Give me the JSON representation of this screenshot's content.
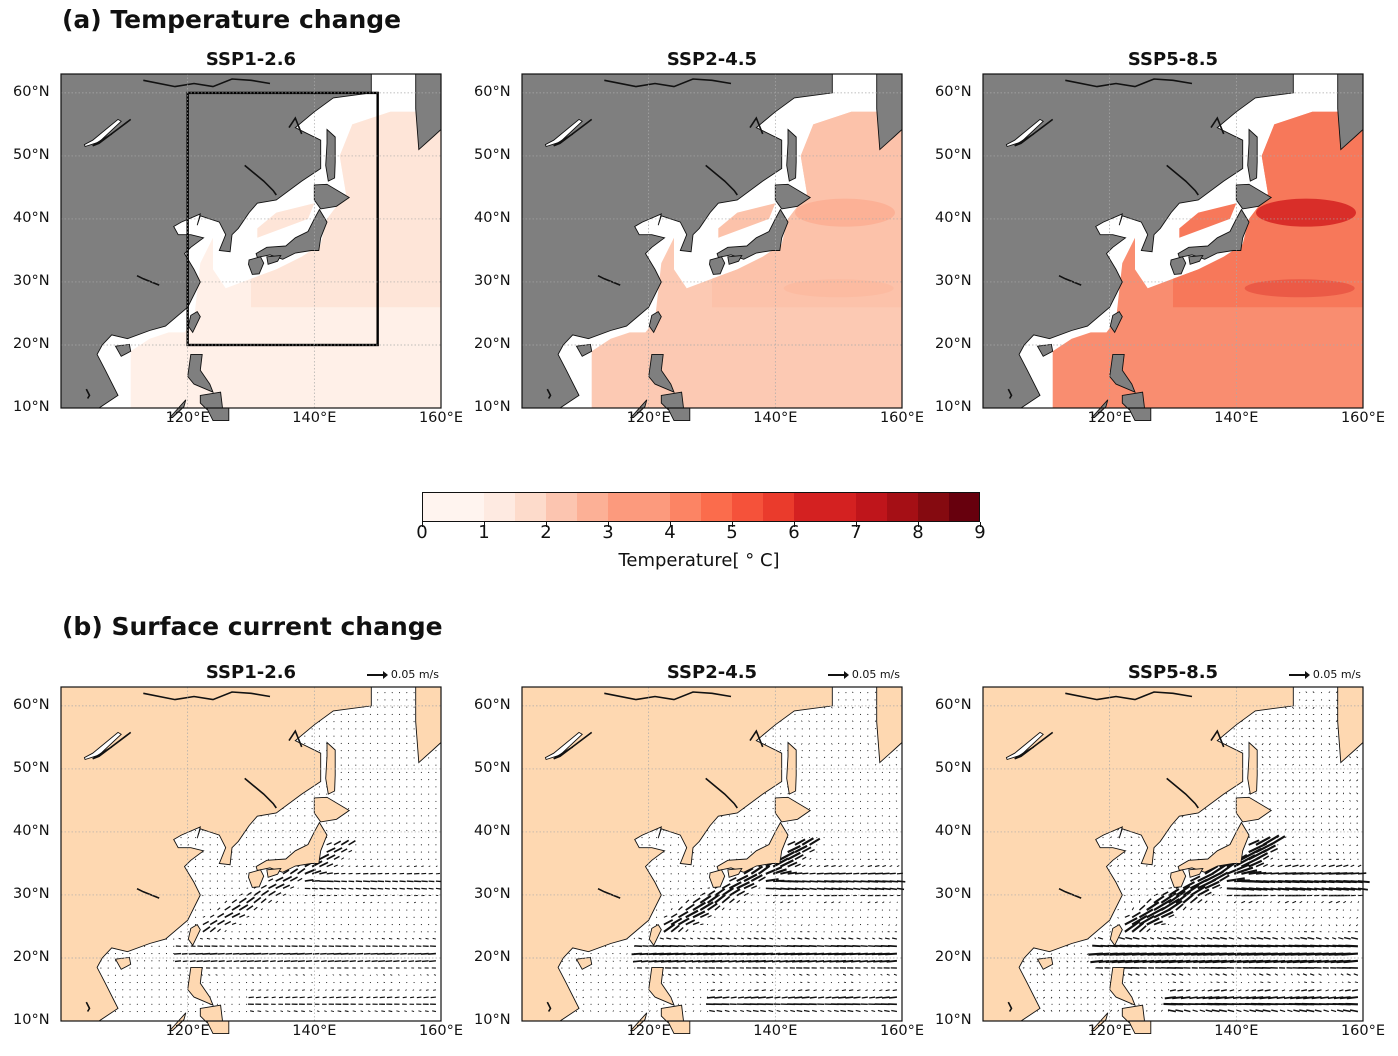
{
  "sections": [
    {
      "label": "(a) Temperature change"
    },
    {
      "label": "(b) Surface current change"
    }
  ],
  "scenarios": [
    "SSP1-2.6",
    "SSP2-4.5",
    "SSP5-8.5"
  ],
  "lat_ticks": [
    "60°N",
    "50°N",
    "40°N",
    "30°N",
    "20°N",
    "10°N"
  ],
  "lon_ticks": [
    "120°E",
    "140°E",
    "160°E"
  ],
  "map_extent": {
    "lon": [
      100,
      160
    ],
    "lat": [
      10,
      63
    ]
  },
  "study_box": {
    "lon": [
      120,
      150
    ],
    "lat": [
      20,
      60
    ]
  },
  "colors": {
    "land_a": "#7f7f7f",
    "land_b": "#fed8b1",
    "ocean_b": "#ffffff",
    "box": "#000000",
    "arrow": "#111111"
  },
  "colorbar": {
    "label": "Temperature[ ° C]",
    "ticks": [
      "0",
      "1",
      "2",
      "3",
      "4",
      "5",
      "6",
      "7",
      "8",
      "9"
    ],
    "colors": [
      "#fff4ef",
      "#feeae1",
      "#fddbcb",
      "#fcc5b0",
      "#fcb096",
      "#fc9a7d",
      "#fc8464",
      "#fb6c4c",
      "#f5523a",
      "#ea3b2c",
      "#d42121",
      "#bf151b",
      "#a50f15",
      "#850a10",
      "#67000d"
    ]
  },
  "reference_arrow": {
    "label": "0.05 m/s"
  },
  "temperature_panels": [
    {
      "scenario": "SSP1-2.6",
      "ocean_fill": "#fee5d8",
      "south_fill": "#fff0e8",
      "hotspot": null,
      "show_box": true
    },
    {
      "scenario": "SSP2-4.5",
      "ocean_fill": "#fcc2aa",
      "south_fill": "#fcc9b3",
      "hotspot": "#fbae93",
      "show_box": false
    },
    {
      "scenario": "SSP5-8.5",
      "ocean_fill": "#f7785a",
      "south_fill": "#f98d70",
      "hotspot": "#d42121",
      "show_box": false
    }
  ],
  "current_panels": [
    {
      "scenario": "SSP1-2.6",
      "strength": 1.0
    },
    {
      "scenario": "SSP2-4.5",
      "strength": 1.5
    },
    {
      "scenario": "SSP5-8.5",
      "strength": 2.1
    }
  ]
}
